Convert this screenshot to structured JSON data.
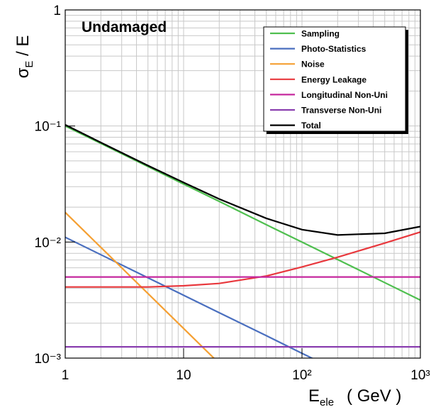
{
  "chart_data": {
    "type": "line",
    "title": "Undamaged",
    "y_label": [
      "σ",
      "E",
      " / E"
    ],
    "x_label": [
      "E",
      "ele",
      "( GeV )"
    ],
    "log_x": true,
    "log_y": true,
    "grid": true,
    "legend_position": "upper right",
    "x": [
      1,
      2,
      5,
      10,
      20,
      50,
      100,
      200,
      500,
      1000
    ],
    "xlim": [
      1,
      1000
    ],
    "ylim": [
      0.001,
      1
    ],
    "xticks": [
      1,
      10,
      {
        "value": 100,
        "label": "10²"
      },
      {
        "value": 1000,
        "label": "10³"
      }
    ],
    "yticks": [
      {
        "value": 0.001,
        "label": "10⁻³"
      },
      {
        "value": 0.01,
        "label": "10⁻²"
      },
      {
        "value": 0.1,
        "label": "10⁻¹"
      },
      1
    ],
    "series": [
      {
        "name": "Sampling",
        "color": "#4fbf4f",
        "values": [
          0.1,
          0.0707,
          0.0447,
          0.0316,
          0.0224,
          0.0141,
          0.01,
          0.00707,
          0.00447,
          0.00316
        ]
      },
      {
        "name": "Photo-Statistics",
        "color": "#4a6fbf",
        "values": [
          0.011,
          0.00778,
          0.00492,
          0.00348,
          0.00246,
          0.00156,
          0.0011,
          0.00078,
          null,
          null
        ]
      },
      {
        "name": "Noise",
        "color": "#f5a033",
        "values": [
          0.018,
          0.009,
          0.0036,
          0.0018,
          0.0009,
          null,
          null,
          null,
          null,
          null
        ]
      },
      {
        "name": "Energy Leakage",
        "color": "#e8383d",
        "values": [
          0.0041,
          0.0041,
          0.0041,
          0.0042,
          0.0044,
          0.0051,
          0.0061,
          0.0074,
          0.0098,
          0.0122
        ]
      },
      {
        "name": "Longitudinal Non-Uni",
        "color": "#c5289e",
        "values": [
          0.005,
          0.005,
          0.005,
          0.005,
          0.005,
          0.005,
          0.005,
          0.005,
          0.005,
          0.005
        ]
      },
      {
        "name": "Transverse Non-Uni",
        "color": "#8a3fb0",
        "values": [
          0.00125,
          0.00125,
          0.00125,
          0.00125,
          0.00125,
          0.00125,
          0.00125,
          0.00125,
          0.00125,
          0.00125
        ]
      },
      {
        "name": "Total",
        "color": "#000000",
        "values": [
          0.1024,
          0.072,
          0.0456,
          0.0326,
          0.0235,
          0.016,
          0.0128,
          0.0115,
          0.0119,
          0.0136
        ]
      }
    ]
  }
}
